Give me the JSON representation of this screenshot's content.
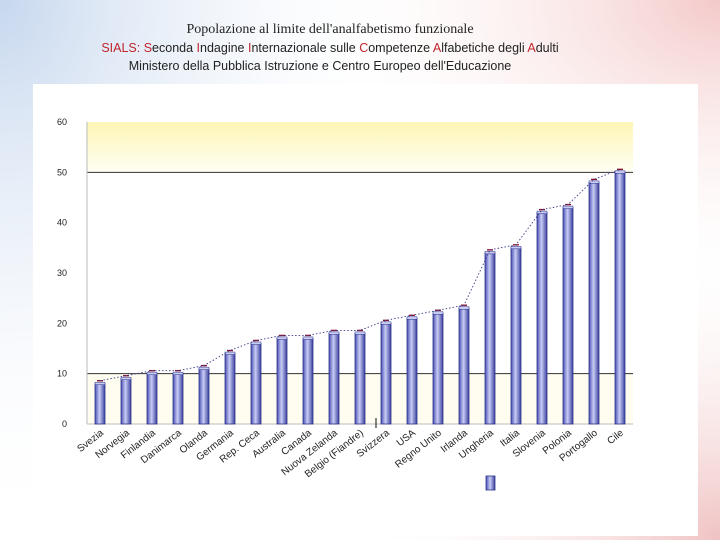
{
  "slide": {
    "title": "Popolazione al limite dell'analfabetismo funzionale",
    "subtitle_parts": [
      {
        "text": "SIALS: ",
        "highlight": true
      },
      {
        "text": "S",
        "highlight": true
      },
      {
        "text": "econda ",
        "highlight": false
      },
      {
        "text": "I",
        "highlight": true
      },
      {
        "text": "ndagine ",
        "highlight": false
      },
      {
        "text": "I",
        "highlight": true
      },
      {
        "text": "nternazionale sulle ",
        "highlight": false
      },
      {
        "text": "C",
        "highlight": true
      },
      {
        "text": "ompetenze ",
        "highlight": false
      },
      {
        "text": "A",
        "highlight": true
      },
      {
        "text": "lfabetiche degli ",
        "highlight": false
      },
      {
        "text": "A",
        "highlight": true
      },
      {
        "text": "dulti",
        "highlight": false
      }
    ],
    "subtitle2": "Ministero della Pubblica Istruzione e Centro Europeo dell'Educazione"
  },
  "colors": {
    "accent_red": "#c0262d",
    "bar_fill": "#8c93dd",
    "bar_stroke": "#2b318a",
    "plot_band_top": "#fdf6b5",
    "plot_band_bottom": "#fffef2",
    "trend_line": "#3a3a8a",
    "error_marker": "#8a1530"
  },
  "chart_data": {
    "type": "bar",
    "categories": [
      "Svezia",
      "Norvegia",
      "Finlandia",
      "Danimarca",
      "Olanda",
      "Germania",
      "Rep. Ceca",
      "Australia",
      "Canada",
      "Nuova Zelanda",
      "Belgio (Fiandre)",
      "Svizzera",
      "USA",
      "Regno Unito",
      "Irlanda",
      "Ungheria",
      "Italia",
      "Slovenia",
      "Polonia",
      "Portogallo",
      "Cile"
    ],
    "values": [
      8,
      9,
      10,
      10,
      11,
      14,
      16,
      17,
      17,
      18,
      18,
      20,
      21,
      22,
      23,
      34,
      35,
      42,
      43,
      48,
      50
    ],
    "ylim": [
      0,
      60
    ],
    "yticks": [
      "0",
      "10",
      "20",
      "30",
      "40",
      "50",
      "60"
    ],
    "trend_line": true,
    "grid": "horizontal at 10 and 50",
    "legend": "bottom (single swatch, no label)"
  }
}
